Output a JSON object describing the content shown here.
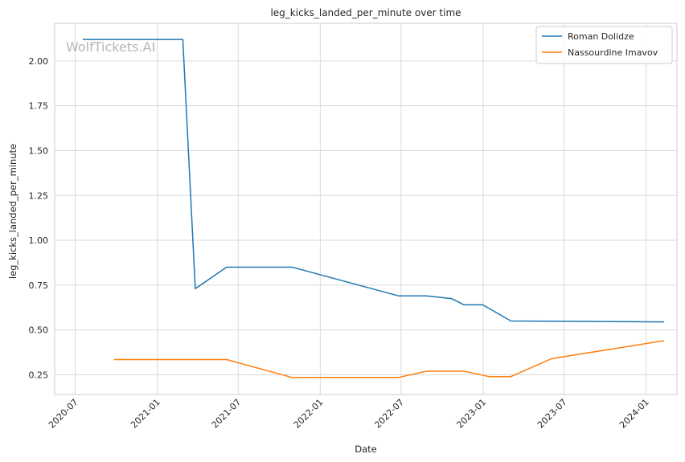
{
  "chart_data": {
    "type": "line",
    "title": "leg_kicks_landed_per_minute over time",
    "xlabel": "Date",
    "ylabel": "leg_kicks_landed_per_minute",
    "watermark": "WolfTickets.AI",
    "x_ticks": [
      "2020-07",
      "2021-01",
      "2021-07",
      "2022-01",
      "2022-07",
      "2023-01",
      "2023-07",
      "2024-01"
    ],
    "y_ticks": [
      "0.25",
      "0.50",
      "0.75",
      "1.00",
      "1.25",
      "1.50",
      "1.75",
      "2.00"
    ],
    "xlim": [
      "2020-05-16",
      "2024-03-10"
    ],
    "ylim": [
      0.14,
      2.21
    ],
    "grid": true,
    "legend_position": "top-right",
    "series": [
      {
        "name": "Roman Dolidze",
        "color": "#1f77b4",
        "points": [
          [
            "2020-07-18",
            2.12
          ],
          [
            "2021-02-27",
            2.12
          ],
          [
            "2021-03-27",
            0.73
          ],
          [
            "2021-06-05",
            0.85
          ],
          [
            "2021-10-30",
            0.85
          ],
          [
            "2022-06-25",
            0.69
          ],
          [
            "2022-08-27",
            0.69
          ],
          [
            "2022-10-22",
            0.675
          ],
          [
            "2022-11-19",
            0.64
          ],
          [
            "2022-12-31",
            0.64
          ],
          [
            "2023-03-04",
            0.55
          ],
          [
            "2024-02-10",
            0.545
          ]
        ]
      },
      {
        "name": "Nassourdine Imavov",
        "color": "#ff7f0e",
        "points": [
          [
            "2020-09-26",
            0.335
          ],
          [
            "2021-06-05",
            0.335
          ],
          [
            "2021-10-30",
            0.235
          ],
          [
            "2022-06-25",
            0.235
          ],
          [
            "2022-08-27",
            0.27
          ],
          [
            "2022-11-19",
            0.27
          ],
          [
            "2023-01-14",
            0.24
          ],
          [
            "2023-03-04",
            0.24
          ],
          [
            "2023-06-03",
            0.34
          ],
          [
            "2024-02-10",
            0.44
          ]
        ]
      }
    ]
  }
}
